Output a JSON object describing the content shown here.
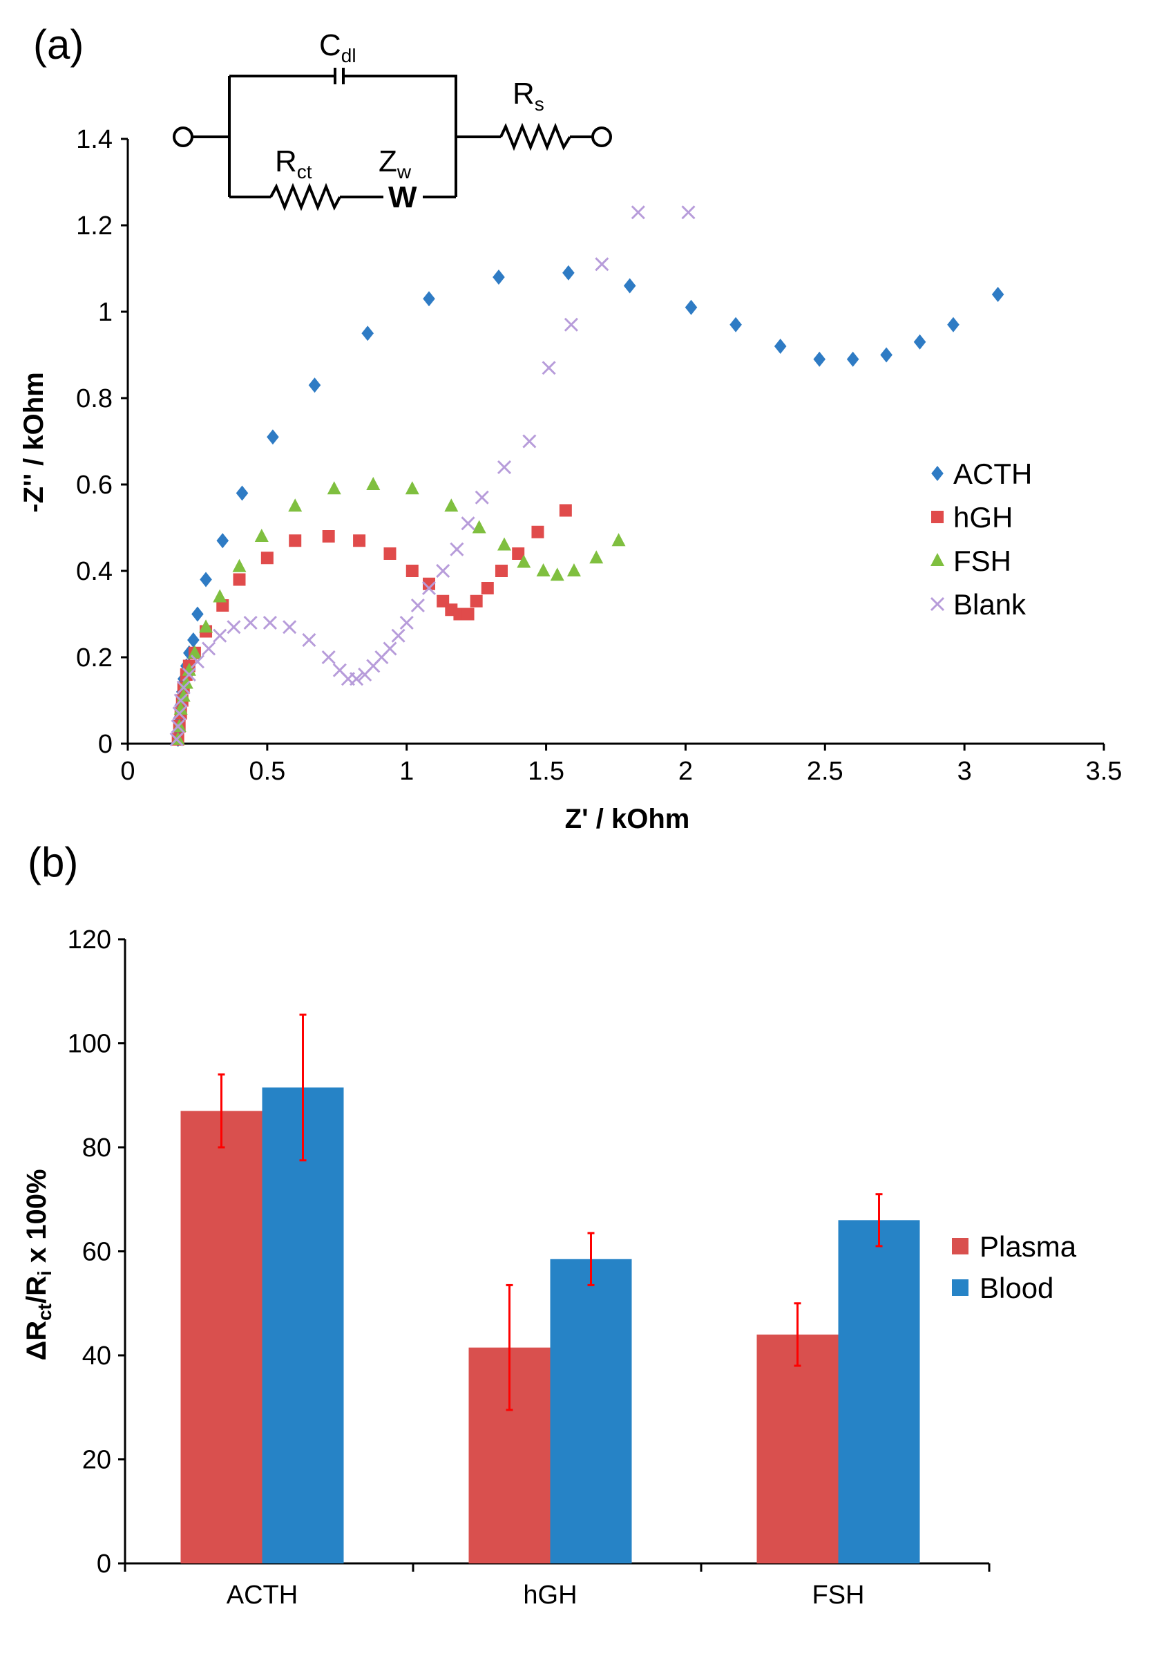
{
  "panel_a": {
    "label": "(a)",
    "circuit": {
      "cdl": {
        "main": "C",
        "sub": "dl"
      },
      "rs": {
        "main": "R",
        "sub": "s"
      },
      "rct": {
        "main": "R",
        "sub": "ct"
      },
      "zw": {
        "main": "Z",
        "sub": "w"
      },
      "warburg_symbol": "W"
    }
  },
  "panel_b": {
    "label": "(b)",
    "ylabel": {
      "delta": "Δ",
      "r1": "R",
      "sub1": "ct",
      "slash": "/R",
      "sub2": "i",
      "tail": " x 100%"
    }
  },
  "chart_data": [
    {
      "type": "scatter",
      "title": "",
      "xlabel": "Z' / kOhm",
      "ylabel": "-Z'' / kOhm",
      "xlim": [
        0,
        3.5
      ],
      "ylim": [
        0,
        1.4
      ],
      "xticks": [
        "0",
        "0.5",
        "1",
        "1.5",
        "2",
        "2.5",
        "3",
        "3.5"
      ],
      "yticks": [
        "0",
        "0.2",
        "0.4",
        "0.6",
        "0.8",
        "1",
        "1.2",
        "1.4"
      ],
      "legend_position": "right",
      "series": [
        {
          "name": "ACTH",
          "marker": "diamond",
          "color": "#2E7BC4",
          "x": [
            0.18,
            0.182,
            0.185,
            0.19,
            0.195,
            0.2,
            0.21,
            0.22,
            0.235,
            0.25,
            0.28,
            0.34,
            0.41,
            0.52,
            0.67,
            0.86,
            1.08,
            1.33,
            1.58,
            1.8,
            2.02,
            2.18,
            2.34,
            2.48,
            2.6,
            2.72,
            2.84,
            2.96,
            3.12
          ],
          "y": [
            0.01,
            0.03,
            0.06,
            0.09,
            0.12,
            0.15,
            0.18,
            0.21,
            0.24,
            0.3,
            0.38,
            0.47,
            0.58,
            0.71,
            0.83,
            0.95,
            1.03,
            1.08,
            1.09,
            1.06,
            1.01,
            0.97,
            0.92,
            0.89,
            0.89,
            0.9,
            0.93,
            0.97,
            1.04
          ]
        },
        {
          "name": "hGH",
          "marker": "square",
          "color": "#E04B4B",
          "x": [
            0.18,
            0.185,
            0.19,
            0.195,
            0.2,
            0.21,
            0.22,
            0.24,
            0.28,
            0.34,
            0.4,
            0.5,
            0.6,
            0.72,
            0.83,
            0.94,
            1.02,
            1.08,
            1.13,
            1.16,
            1.19,
            1.22,
            1.25,
            1.29,
            1.34,
            1.4,
            1.47,
            1.57
          ],
          "y": [
            0.01,
            0.04,
            0.07,
            0.1,
            0.13,
            0.16,
            0.18,
            0.21,
            0.26,
            0.32,
            0.38,
            0.43,
            0.47,
            0.48,
            0.47,
            0.44,
            0.4,
            0.37,
            0.33,
            0.31,
            0.3,
            0.3,
            0.33,
            0.36,
            0.4,
            0.44,
            0.49,
            0.54
          ]
        },
        {
          "name": "FSH",
          "marker": "triangle",
          "color": "#7FBF3F",
          "x": [
            0.18,
            0.185,
            0.19,
            0.2,
            0.21,
            0.22,
            0.24,
            0.28,
            0.33,
            0.4,
            0.48,
            0.6,
            0.74,
            0.88,
            1.02,
            1.16,
            1.26,
            1.35,
            1.42,
            1.49,
            1.54,
            1.6,
            1.68,
            1.76
          ],
          "y": [
            0.01,
            0.04,
            0.08,
            0.11,
            0.14,
            0.17,
            0.21,
            0.27,
            0.34,
            0.41,
            0.48,
            0.55,
            0.59,
            0.6,
            0.59,
            0.55,
            0.5,
            0.46,
            0.42,
            0.4,
            0.39,
            0.4,
            0.43,
            0.47
          ]
        },
        {
          "name": "Blank",
          "marker": "x",
          "color": "#B79CDA",
          "x": [
            0.175,
            0.18,
            0.185,
            0.19,
            0.2,
            0.22,
            0.25,
            0.29,
            0.33,
            0.38,
            0.44,
            0.51,
            0.58,
            0.65,
            0.72,
            0.76,
            0.79,
            0.82,
            0.85,
            0.88,
            0.91,
            0.94,
            0.97,
            1.0,
            1.04,
            1.08,
            1.13,
            1.18,
            1.22,
            1.27,
            1.35,
            1.44,
            1.51,
            1.59,
            1.7,
            1.83,
            2.01
          ],
          "y": [
            0.01,
            0.04,
            0.07,
            0.1,
            0.13,
            0.16,
            0.19,
            0.22,
            0.25,
            0.27,
            0.28,
            0.28,
            0.27,
            0.24,
            0.2,
            0.17,
            0.15,
            0.15,
            0.16,
            0.18,
            0.2,
            0.22,
            0.25,
            0.28,
            0.32,
            0.36,
            0.4,
            0.45,
            0.51,
            0.57,
            0.64,
            0.7,
            0.87,
            0.97,
            1.11,
            1.23,
            1.23
          ]
        }
      ]
    },
    {
      "type": "bar",
      "title": "",
      "xlabel": "",
      "ylabel": "ΔRct/Ri x 100%",
      "ylim": [
        0,
        120
      ],
      "yticks": [
        "0",
        "20",
        "40",
        "60",
        "80",
        "100",
        "120"
      ],
      "categories": [
        "ACTH",
        "hGH",
        "FSH"
      ],
      "legend_position": "right",
      "series": [
        {
          "name": "Plasma",
          "color": "#D9504E",
          "values": [
            87,
            41.5,
            44
          ],
          "errors": [
            7,
            12,
            6
          ]
        },
        {
          "name": "Blood",
          "color": "#2683C6",
          "values": [
            91.5,
            58.5,
            66
          ],
          "errors": [
            14,
            5,
            5
          ]
        }
      ]
    }
  ]
}
